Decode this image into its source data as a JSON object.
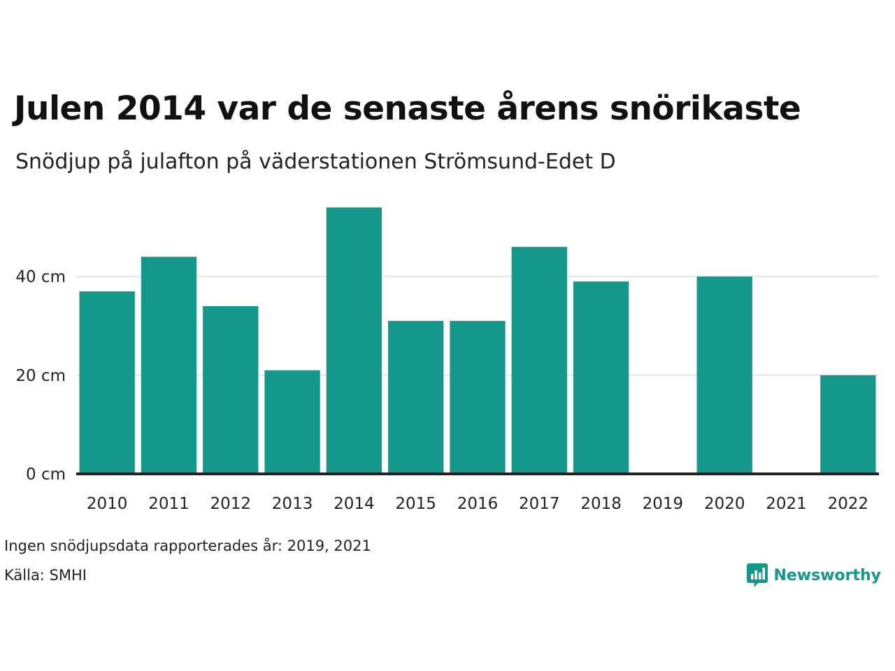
{
  "header": {
    "title": "Julen 2014 var de senaste årens snörikaste",
    "subtitle": "Snödjup på julafton på väderstationen Strömsund-Edet D"
  },
  "chart_data": {
    "type": "bar",
    "categories": [
      "2010",
      "2011",
      "2012",
      "2013",
      "2014",
      "2015",
      "2016",
      "2017",
      "2018",
      "2019",
      "2020",
      "2021",
      "2022"
    ],
    "values": [
      37,
      44,
      34,
      21,
      54,
      31,
      31,
      46,
      39,
      null,
      40,
      null,
      20
    ],
    "y_ticks": [
      0,
      20,
      40
    ],
    "y_tick_labels": [
      "0 cm",
      "20 cm",
      "40 cm"
    ],
    "ylim": [
      0,
      54
    ],
    "grid": true,
    "bar_color": "#15978a"
  },
  "footer": {
    "note": "Ingen snödjupsdata rapporterades år: 2019, 2021",
    "source": "Källa: SMHI"
  },
  "brand": {
    "name": "Newsworthy",
    "icon": "newsworthy-logo-icon",
    "color": "#15978a"
  }
}
